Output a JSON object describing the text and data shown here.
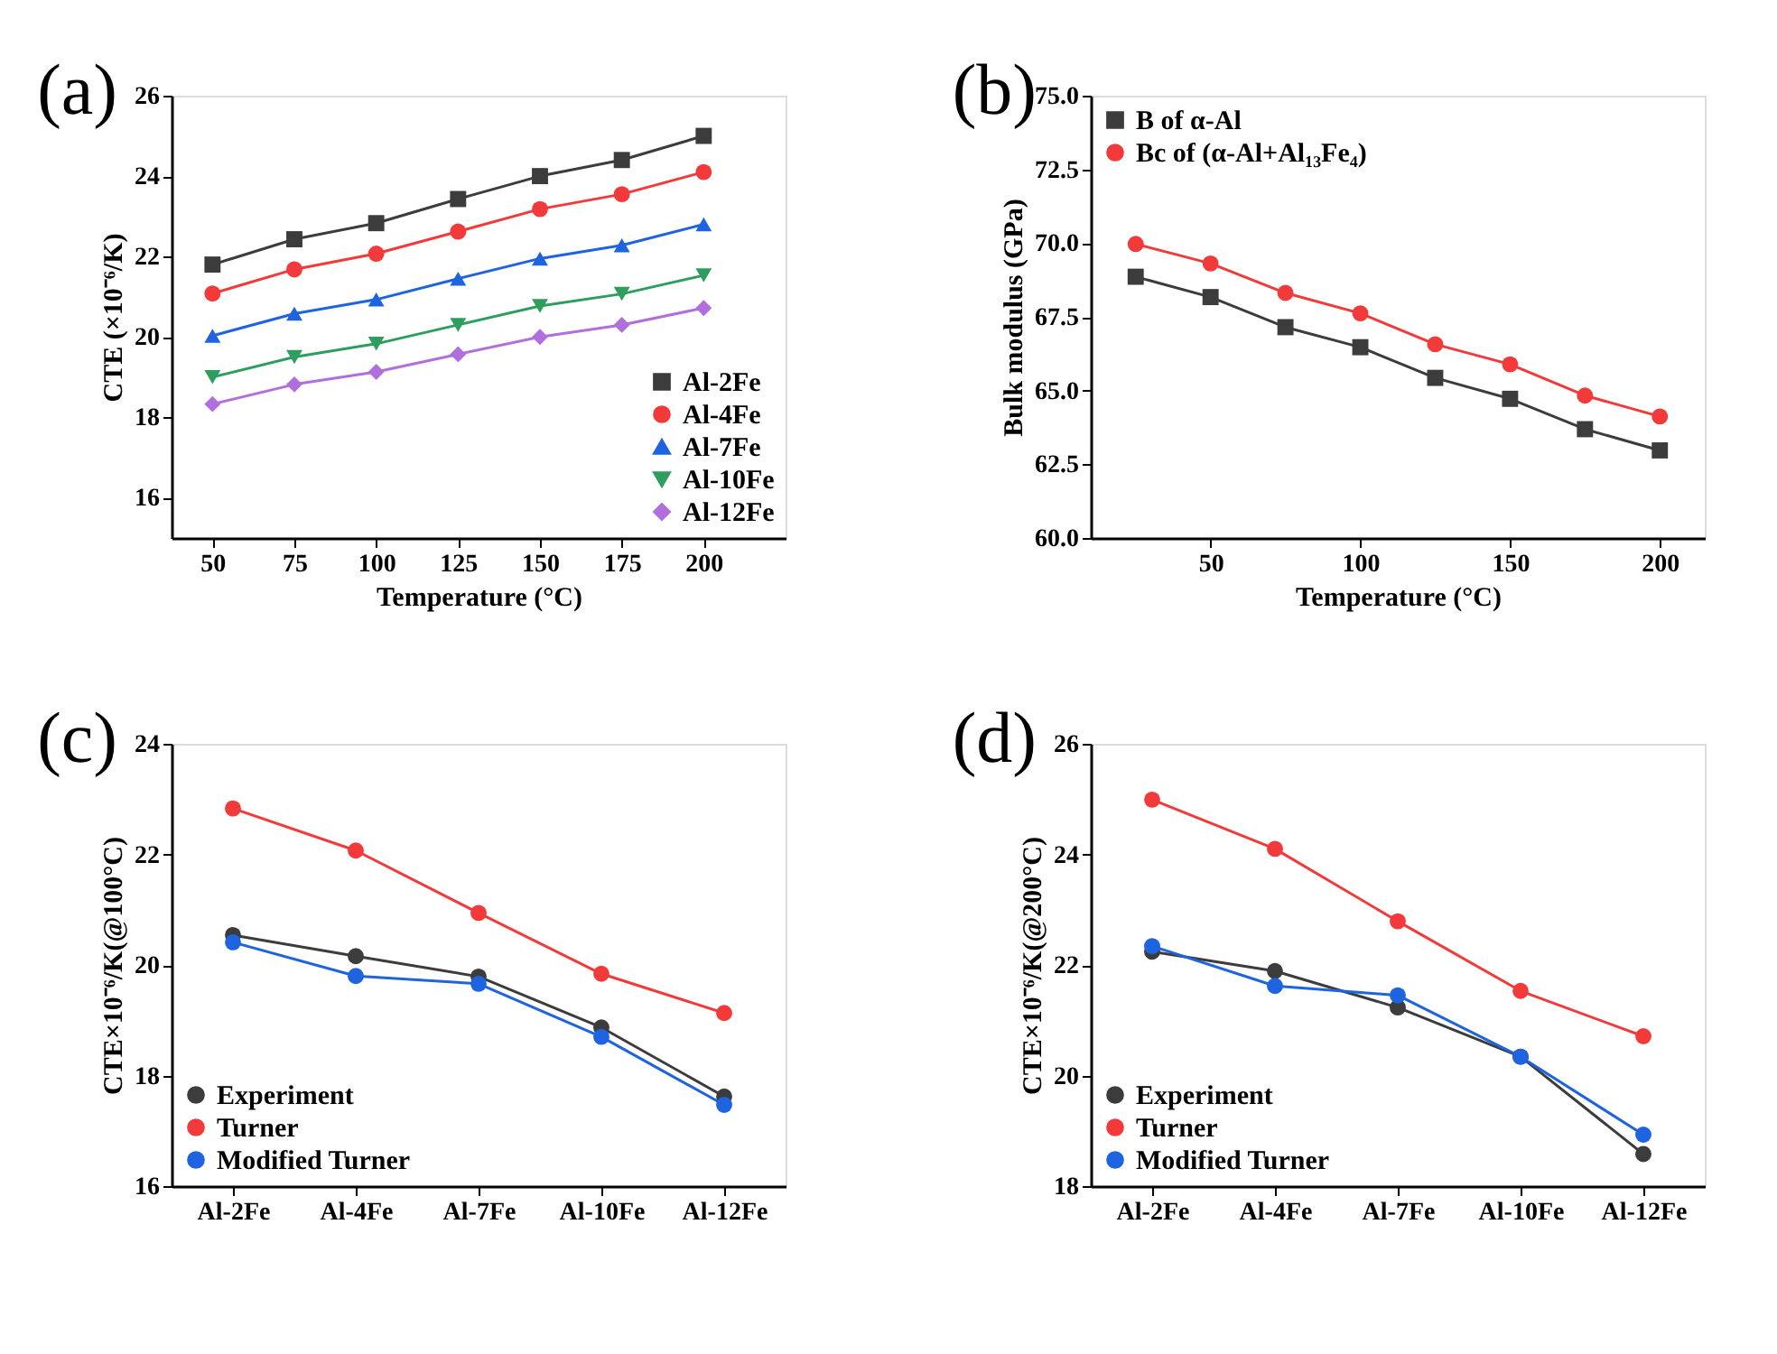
{
  "chart_data": [
    {
      "type": "line",
      "annotations": [
        "(a)"
      ],
      "xlabel": "Temperature (°C)",
      "ylabel": "CTE (×10⁻⁶/K)",
      "x": [
        50,
        75,
        100,
        125,
        150,
        175,
        200
      ],
      "xlim": [
        37.5,
        225
      ],
      "xticks": [
        50,
        75,
        100,
        125,
        150,
        175,
        200
      ],
      "ylim": [
        15,
        26
      ],
      "yticks": [
        16,
        18,
        20,
        22,
        24,
        26
      ],
      "legend": "bottom right",
      "grid": false,
      "series": [
        {
          "name": "Al-2Fe",
          "color": "#3c3c3c",
          "marker": "square",
          "values": [
            21.8,
            22.43,
            22.83,
            23.43,
            24.0,
            24.4,
            25.0
          ]
        },
        {
          "name": "Al-4Fe",
          "color": "#f23a3a",
          "marker": "circle",
          "values": [
            21.08,
            21.68,
            22.07,
            22.62,
            23.18,
            23.55,
            24.1
          ]
        },
        {
          "name": "Al-7Fe",
          "color": "#1e63e0",
          "marker": "triangle",
          "values": [
            20.03,
            20.58,
            20.93,
            21.45,
            21.95,
            22.28,
            22.8
          ]
        },
        {
          "name": "Al-10Fe",
          "color": "#2e9e5e",
          "marker": "triangle-down",
          "values": [
            19.0,
            19.5,
            19.83,
            20.3,
            20.77,
            21.07,
            21.53
          ]
        },
        {
          "name": "Al-12Fe",
          "color": "#b06fdd",
          "marker": "diamond",
          "values": [
            18.33,
            18.82,
            19.13,
            19.57,
            20.0,
            20.3,
            20.72
          ]
        }
      ]
    },
    {
      "type": "line",
      "annotations": [
        "(b)"
      ],
      "xlabel": "Temperature (°C)",
      "ylabel": "Bulk modulus (GPa)",
      "x": [
        25,
        50,
        75,
        100,
        125,
        150,
        175,
        200
      ],
      "xlim": [
        10,
        215
      ],
      "xticks": [
        50,
        100,
        150,
        200
      ],
      "ylim": [
        60,
        75
      ],
      "yticks": [
        {
          "value": 60,
          "label": "60.0"
        },
        62.5,
        {
          "value": 65,
          "label": "65.0"
        },
        67.5,
        {
          "value": 70,
          "label": "70.0"
        },
        72.5,
        {
          "value": 75,
          "label": "75.0"
        }
      ],
      "legend": "top left",
      "grid": false,
      "series": [
        {
          "name": "B of α-Al",
          "color": "#3c3c3c",
          "marker": "square",
          "values": [
            68.86,
            68.17,
            67.15,
            66.47,
            65.43,
            64.72,
            63.69,
            62.97
          ]
        },
        {
          "name": "Bc of (α-Al+Al₁₃Fe₄)",
          "color": "#f23a3a",
          "marker": "circle",
          "values": [
            69.97,
            69.31,
            68.31,
            67.62,
            66.57,
            65.89,
            64.83,
            64.12
          ]
        }
      ]
    },
    {
      "type": "line",
      "annotations": [
        "(c)"
      ],
      "ylabel": "CTE×10⁻⁶/K(@100°C)",
      "categories": [
        "Al-2Fe",
        "Al-4Fe",
        "Al-7Fe",
        "Al-10Fe",
        "Al-12Fe"
      ],
      "ylim": [
        16,
        24
      ],
      "yticks": [
        16,
        18,
        20,
        22,
        24
      ],
      "legend": "bottom left",
      "grid": false,
      "series": [
        {
          "name": "Experiment",
          "color": "#3c3c3c",
          "marker": "circle",
          "values": [
            20.54,
            20.16,
            19.79,
            18.87,
            17.62
          ]
        },
        {
          "name": "Turner",
          "color": "#f23a3a",
          "marker": "circle",
          "values": [
            22.83,
            22.07,
            20.94,
            19.84,
            19.13
          ]
        },
        {
          "name": "Modified Turner",
          "color": "#1e63e0",
          "marker": "circle",
          "values": [
            20.41,
            19.8,
            19.66,
            18.7,
            17.47
          ]
        }
      ]
    },
    {
      "type": "line",
      "annotations": [
        "(d)"
      ],
      "ylabel": "CTE×10⁻⁶/K(@200°C)",
      "categories": [
        "Al-2Fe",
        "Al-4Fe",
        "Al-7Fe",
        "Al-10Fe",
        "Al-12Fe"
      ],
      "ylim": [
        18,
        26
      ],
      "yticks": [
        18,
        20,
        22,
        24,
        26
      ],
      "legend": "bottom left",
      "grid": false,
      "series": [
        {
          "name": "Experiment",
          "color": "#3c3c3c",
          "marker": "circle",
          "values": [
            22.24,
            21.89,
            21.23,
            20.34,
            18.58
          ]
        },
        {
          "name": "Turner",
          "color": "#f23a3a",
          "marker": "circle",
          "values": [
            24.99,
            24.1,
            22.79,
            21.53,
            20.71
          ]
        },
        {
          "name": "Modified Turner",
          "color": "#1e63e0",
          "marker": "circle",
          "values": [
            22.34,
            21.62,
            21.45,
            20.34,
            18.93
          ]
        }
      ]
    }
  ]
}
